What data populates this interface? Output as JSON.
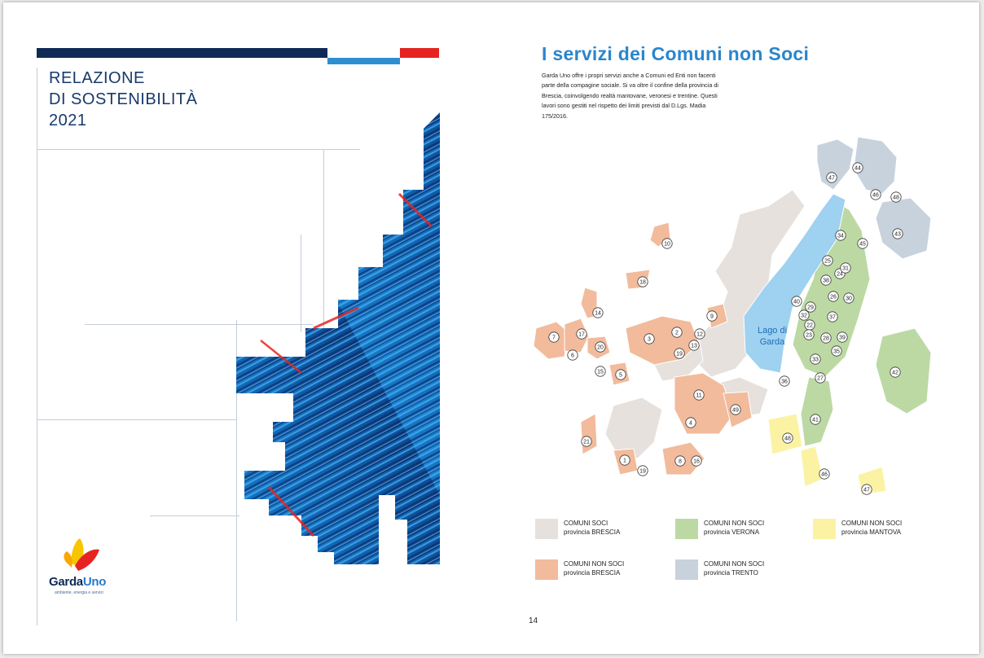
{
  "cover": {
    "title_lines": [
      "RELAZIONE",
      "DI SOSTENIBILITÀ",
      "2021"
    ],
    "logo": {
      "name_part1": "Garda",
      "name_part2": "Uno",
      "tagline": "ambiente, energia e servizi"
    }
  },
  "right_page": {
    "title": "I servizi dei Comuni non Soci",
    "body": "Garda Uno offre i propri servizi anche a Comuni ed Enti non facenti parte della compagine sociale.   Si va oltre il confine della provincia di Brescia, coinvolgendo realtà mantovane, veronesi e trentine.  Questi lavori sono gestiti nel rispetto dei limiti previsti dal D.Lgs. Madia 175/2016.",
    "map": {
      "lake_label_line1": "Lago di",
      "lake_label_line2": "Garda",
      "numbers": [
        "1",
        "2",
        "3",
        "4",
        "5",
        "6",
        "7",
        "8",
        "9",
        "10",
        "11",
        "12",
        "13",
        "14",
        "15",
        "16",
        "17",
        "18",
        "19",
        "19",
        "20",
        "21",
        "22",
        "23",
        "24",
        "25",
        "26",
        "27",
        "28",
        "29",
        "30",
        "31",
        "32",
        "33",
        "34",
        "35",
        "36",
        "37",
        "38",
        "39",
        "40",
        "41",
        "42",
        "43",
        "44",
        "45",
        "46",
        "46",
        "47",
        "47",
        "48",
        "48",
        "49"
      ]
    },
    "legend": [
      {
        "line1": "COMUNI SOCI",
        "line2": "provincia BRESCIA",
        "color": "#e6e1dd"
      },
      {
        "line1": "COMUNI NON SOCI",
        "line2": "provincia VERONA",
        "color": "#bcd9a4"
      },
      {
        "line1": "COMUNI NON SOCI",
        "line2": "provincia MANTOVA",
        "color": "#fbf3a3"
      },
      {
        "line1": "COMUNI NON SOCI",
        "line2": "provincia BRESCIA",
        "color": "#f2bb9c"
      },
      {
        "line1": "COMUNI NON SOCI",
        "line2": "provincia TRENTO",
        "color": "#c7d2dd"
      }
    ],
    "page_number": "14"
  },
  "colors": {
    "navy": "#0e2a55",
    "accent_blue": "#2a86cc",
    "accent_red": "#e52421",
    "lake": "#9fd1f0"
  }
}
